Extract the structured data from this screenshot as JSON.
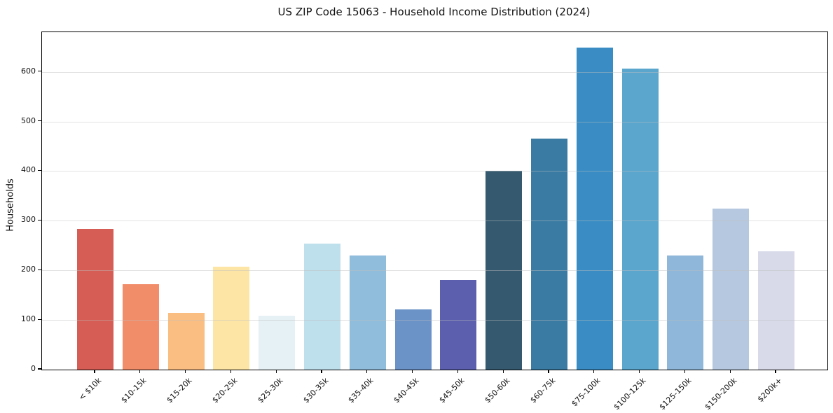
{
  "title": "US ZIP Code 15063 - Household Income Distribution (2024)",
  "chart_data": {
    "type": "bar",
    "title": "US ZIP Code 15063 - Household Income Distribution (2024)",
    "xlabel": "",
    "ylabel": "Households",
    "categories": [
      "< $10k",
      "$10-15k",
      "$15-20k",
      "$20-25k",
      "$25-30k",
      "$30-35k",
      "$35-40k",
      "$40-45k",
      "$45-50k",
      "$50-60k",
      "$60-75k",
      "$75-100k",
      "$100-125k",
      "$125-150k",
      "$150-200k",
      "$200k+"
    ],
    "values": [
      284,
      172,
      115,
      207,
      108,
      254,
      230,
      122,
      181,
      400,
      466,
      649,
      606,
      230,
      324,
      239
    ],
    "bar_colors": [
      "#d65d55",
      "#f28d6a",
      "#fabd82",
      "#fde5a6",
      "#e6f1f5",
      "#bedfec",
      "#91bddc",
      "#6b93c8",
      "#5b5fae",
      "#355a70",
      "#3a7ba3",
      "#398dc4",
      "#5ba6cd",
      "#8fb7da",
      "#b6c8df",
      "#d8dae9"
    ],
    "yticks": [
      0,
      100,
      200,
      300,
      400,
      500,
      600
    ],
    "ylim": [
      0,
      680
    ],
    "grid": "horizontal-light-gray-over-bars",
    "legend": "none",
    "background_color": "#ffffff",
    "spine_color": "#000000",
    "x_tick_label_rotation_deg": 45
  }
}
